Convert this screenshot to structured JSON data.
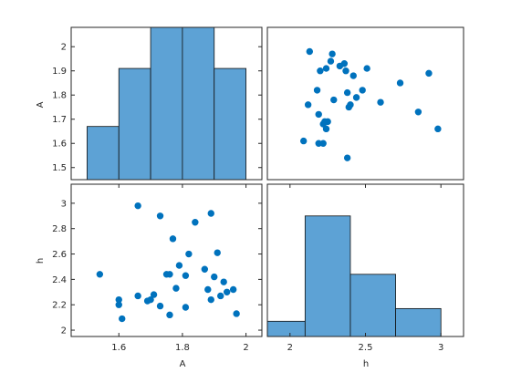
{
  "chart_data": {
    "type": "scatter",
    "variables": [
      "A",
      "h"
    ],
    "colors": {
      "marker": "#0072BD",
      "bar_fill": "#5DA2D5",
      "bar_edge": "#111111",
      "axis": "#262626"
    },
    "panels": {
      "A_hist": {
        "type": "bar",
        "bin_edges": [
          1.5,
          1.6,
          1.7,
          1.8,
          1.9,
          2.0
        ],
        "counts": [
          1.67,
          1.91,
          2.08,
          2.08,
          1.91
        ],
        "xlim": [
          1.45,
          2.05
        ],
        "ylim": [
          1.45,
          2.08
        ],
        "yticks": [
          1.5,
          1.6,
          1.7,
          1.8,
          1.9,
          2
        ],
        "ytick_labels": [
          "1.5",
          "1.6",
          "1.7",
          "1.8",
          "1.9",
          "2"
        ],
        "ylabel": "A"
      },
      "h_vs_A_scatter": {
        "xlim": [
          1.45,
          2.05
        ],
        "ylim": [
          1.95,
          3.15
        ],
        "xticks": [
          1.6,
          1.8,
          2
        ],
        "xtick_labels": [
          "1.6",
          "1.8",
          "2"
        ],
        "yticks": [
          2,
          2.2,
          2.4,
          2.6,
          2.8,
          3
        ],
        "ytick_labels": [
          "2",
          "2.2",
          "2.4",
          "2.6",
          "2.8",
          "3"
        ],
        "xlabel": "A",
        "ylabel": "h",
        "points": [
          {
            "x": 1.54,
            "y": 2.44
          },
          {
            "x": 1.6,
            "y": 2.24
          },
          {
            "x": 1.6,
            "y": 2.2
          },
          {
            "x": 1.61,
            "y": 2.09
          },
          {
            "x": 1.66,
            "y": 2.98
          },
          {
            "x": 1.66,
            "y": 2.27
          },
          {
            "x": 1.69,
            "y": 2.23
          },
          {
            "x": 1.7,
            "y": 2.24
          },
          {
            "x": 1.71,
            "y": 2.28
          },
          {
            "x": 1.73,
            "y": 2.9
          },
          {
            "x": 1.73,
            "y": 2.19
          },
          {
            "x": 1.75,
            "y": 2.44
          },
          {
            "x": 1.76,
            "y": 2.44
          },
          {
            "x": 1.76,
            "y": 2.12
          },
          {
            "x": 1.77,
            "y": 2.72
          },
          {
            "x": 1.78,
            "y": 2.33
          },
          {
            "x": 1.79,
            "y": 2.51
          },
          {
            "x": 1.81,
            "y": 2.43
          },
          {
            "x": 1.81,
            "y": 2.18
          },
          {
            "x": 1.82,
            "y": 2.6
          },
          {
            "x": 1.84,
            "y": 2.85
          },
          {
            "x": 1.87,
            "y": 2.48
          },
          {
            "x": 1.88,
            "y": 2.32
          },
          {
            "x": 1.89,
            "y": 2.92
          },
          {
            "x": 1.89,
            "y": 2.24
          },
          {
            "x": 1.9,
            "y": 2.42
          },
          {
            "x": 1.91,
            "y": 2.61
          },
          {
            "x": 1.92,
            "y": 2.27
          },
          {
            "x": 1.93,
            "y": 2.38
          },
          {
            "x": 1.94,
            "y": 2.3
          },
          {
            "x": 1.96,
            "y": 2.32
          },
          {
            "x": 1.97,
            "y": 2.13
          }
        ]
      },
      "A_vs_h_scatter": {
        "xlim": [
          1.85,
          3.15
        ],
        "ylim": [
          1.45,
          2.08
        ],
        "points": [
          {
            "x": 2.09,
            "y": 1.61
          },
          {
            "x": 2.12,
            "y": 1.76
          },
          {
            "x": 2.13,
            "y": 1.98
          },
          {
            "x": 2.18,
            "y": 1.82
          },
          {
            "x": 2.19,
            "y": 1.72
          },
          {
            "x": 2.19,
            "y": 1.6
          },
          {
            "x": 2.2,
            "y": 1.9
          },
          {
            "x": 2.22,
            "y": 1.68
          },
          {
            "x": 2.22,
            "y": 1.6
          },
          {
            "x": 2.23,
            "y": 1.69
          },
          {
            "x": 2.24,
            "y": 1.91
          },
          {
            "x": 2.24,
            "y": 1.66
          },
          {
            "x": 2.25,
            "y": 1.69
          },
          {
            "x": 2.27,
            "y": 1.94
          },
          {
            "x": 2.28,
            "y": 1.97
          },
          {
            "x": 2.29,
            "y": 1.78
          },
          {
            "x": 2.33,
            "y": 1.92
          },
          {
            "x": 2.36,
            "y": 1.93
          },
          {
            "x": 2.37,
            "y": 1.9
          },
          {
            "x": 2.38,
            "y": 1.81
          },
          {
            "x": 2.38,
            "y": 1.54
          },
          {
            "x": 2.39,
            "y": 1.75
          },
          {
            "x": 2.4,
            "y": 1.76
          },
          {
            "x": 2.42,
            "y": 1.88
          },
          {
            "x": 2.44,
            "y": 1.79
          },
          {
            "x": 2.48,
            "y": 1.82
          },
          {
            "x": 2.51,
            "y": 1.91
          },
          {
            "x": 2.6,
            "y": 1.77
          },
          {
            "x": 2.73,
            "y": 1.85
          },
          {
            "x": 2.85,
            "y": 1.73
          },
          {
            "x": 2.92,
            "y": 1.89
          },
          {
            "x": 2.98,
            "y": 1.66
          }
        ]
      },
      "h_hist": {
        "type": "bar",
        "bin_edges": [
          1.85,
          2.1,
          2.4,
          2.7,
          3.0
        ],
        "counts": [
          2.07,
          2.9,
          2.44,
          2.17
        ],
        "xlim": [
          1.85,
          3.15
        ],
        "ylim": [
          1.95,
          3.15
        ],
        "xticks": [
          2,
          2.5,
          3
        ],
        "xtick_labels": [
          "2",
          "2.5",
          "3"
        ],
        "xlabel": "h"
      }
    }
  }
}
